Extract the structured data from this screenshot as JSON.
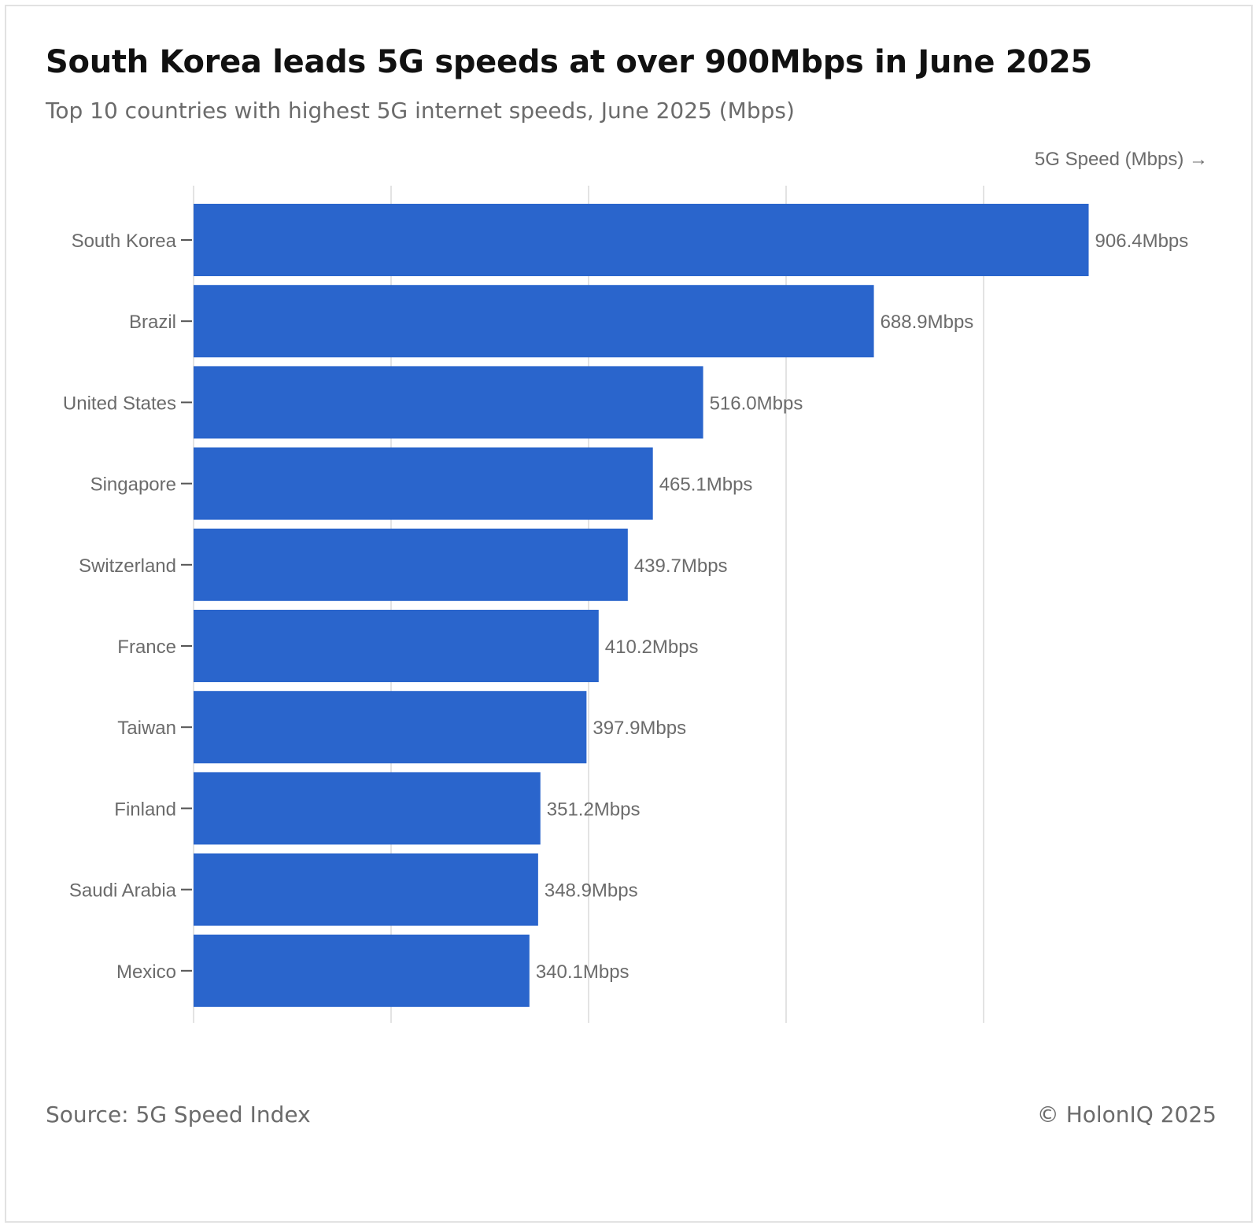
{
  "header": {
    "title": "South Korea leads 5G speeds at over 900Mbps in June 2025",
    "subtitle": "Top 10 countries with highest 5G internet speeds, June 2025 (Mbps)"
  },
  "footer": {
    "source": "Source: 5G Speed Index",
    "copyright": "© HolonIQ 2025"
  },
  "chart_data": {
    "type": "bar",
    "orientation": "horizontal",
    "categories": [
      "South Korea",
      "Brazil",
      "United States",
      "Singapore",
      "Switzerland",
      "France",
      "Taiwan",
      "Finland",
      "Saudi Arabia",
      "Mexico"
    ],
    "values": [
      906.4,
      688.9,
      516.0,
      465.1,
      439.7,
      410.2,
      397.9,
      351.2,
      348.9,
      340.1
    ],
    "data_labels": [
      "906.4Mbps",
      "688.9Mbps",
      "516.0Mbps",
      "465.1Mbps",
      "439.7Mbps",
      "410.2Mbps",
      "397.9Mbps",
      "351.2Mbps",
      "348.9Mbps",
      "340.1Mbps"
    ],
    "xlabel": "5G Speed (Mbps) →",
    "ylabel": "",
    "xlim": [
      0,
      1000
    ],
    "grid_values": [
      0,
      200,
      400,
      600,
      800
    ],
    "grid": true,
    "bar_color": "#2a65cc"
  }
}
